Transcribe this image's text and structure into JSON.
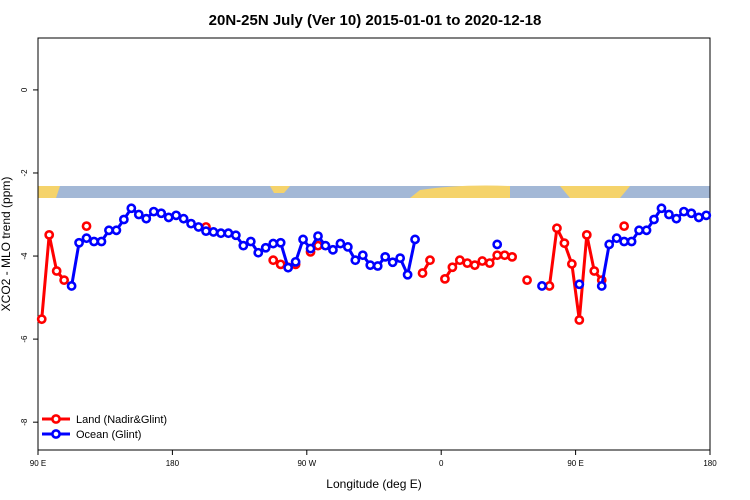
{
  "chart_data": {
    "type": "line",
    "title": "20N-25N July (Ver 10)   2015-01-01 to 2020-12-18",
    "x_label": "Longitude (deg E)",
    "y_label": "XCO2 - MLO trend (ppm)",
    "xlim": [
      90,
      540
    ],
    "xticks": [
      {
        "value": 90,
        "label": "90 E"
      },
      180,
      {
        "value": 270,
        "label": "90 W"
      },
      {
        "value": 360,
        "label": "0"
      },
      {
        "value": 450,
        "label": "90 E"
      },
      {
        "value": 540,
        "label": "180"
      }
    ],
    "ylim": [
      -8.67,
      1.25
    ],
    "yticks": [
      0,
      -2,
      -4,
      -6,
      -8
    ],
    "grid": false,
    "legend": "bottomleft",
    "series": [
      {
        "name": "Land (Nadir&Glint)",
        "color": "#ff0000",
        "x": [
          92.5,
          97.5,
          102.5,
          107.5,
          112.5,
          122.5,
          127.5,
          202.5,
          207.5,
          247.5,
          252.5,
          257.5,
          262.5,
          267.5,
          272.5,
          277.5,
          282.5,
          347.5,
          352.5,
          357.5,
          362.5,
          367.5,
          372.5,
          377.5,
          382.5,
          387.5,
          392.5,
          397.5,
          402.5,
          407.5,
          412.5,
          417.5,
          422.5,
          432.5,
          437.5,
          442.5,
          447.5,
          452.5,
          457.5,
          462.5,
          467.5,
          472.5,
          482.5
        ],
        "values": [
          -5.52,
          -3.49,
          -4.36,
          -4.58,
          null,
          -3.28,
          null,
          -3.3,
          null,
          -4.1,
          -4.2,
          -4.27,
          -4.2,
          null,
          -3.9,
          -3.75,
          null,
          -4.41,
          -4.1,
          null,
          -4.55,
          -4.27,
          -4.1,
          -4.17,
          -4.22,
          -4.12,
          -4.17,
          -3.98,
          -3.98,
          -4.02,
          null,
          -4.58,
          null,
          -4.72,
          -3.33,
          -3.69,
          -4.19,
          -5.54,
          -3.49,
          -4.36,
          -4.58,
          null,
          -3.28
        ]
      },
      {
        "name": "Ocean (Glint)",
        "color": "#0000ff",
        "x": [
          112.5,
          117.5,
          122.5,
          127.5,
          132.5,
          137.5,
          142.5,
          147.5,
          152.5,
          157.5,
          162.5,
          167.5,
          172.5,
          177.5,
          182.5,
          187.5,
          192.5,
          197.5,
          202.5,
          207.5,
          212.5,
          217.5,
          222.5,
          227.5,
          232.5,
          237.5,
          242.5,
          247.5,
          252.5,
          257.5,
          262.5,
          267.5,
          272.5,
          277.5,
          282.5,
          287.5,
          292.5,
          297.5,
          302.5,
          307.5,
          312.5,
          317.5,
          322.5,
          327.5,
          332.5,
          337.5,
          342.5,
          347.5,
          397.5,
          402.5,
          427.5,
          432.5,
          452.5,
          457.5,
          467.5,
          472.5,
          477.5,
          482.5,
          487.5,
          492.5,
          497.5,
          502.5,
          507.5,
          512.5,
          517.5,
          522.5,
          527.5,
          532.5,
          537.5
        ],
        "values": [
          -4.72,
          -3.68,
          -3.57,
          -3.65,
          -3.65,
          -3.38,
          -3.38,
          -3.12,
          -2.85,
          -3.0,
          -3.1,
          -2.93,
          -2.97,
          -3.07,
          -3.02,
          -3.1,
          -3.22,
          -3.3,
          -3.4,
          -3.42,
          -3.45,
          -3.45,
          -3.5,
          -3.75,
          -3.65,
          -3.92,
          -3.8,
          -3.7,
          -3.68,
          -4.28,
          -4.14,
          -3.6,
          -3.82,
          -3.52,
          -3.75,
          -3.85,
          -3.7,
          -3.78,
          -4.1,
          -3.98,
          -4.22,
          -4.24,
          -4.02,
          -4.15,
          -4.05,
          -4.45,
          -3.6,
          null,
          -3.72,
          null,
          -4.72,
          null,
          -4.68,
          null,
          -4.72,
          -3.72,
          -3.57,
          -3.65,
          -3.65,
          -3.38,
          -3.38,
          -3.12,
          -2.85,
          -3.0,
          -3.1,
          -2.93,
          -2.97,
          -3.07,
          -3.02
        ]
      }
    ]
  }
}
